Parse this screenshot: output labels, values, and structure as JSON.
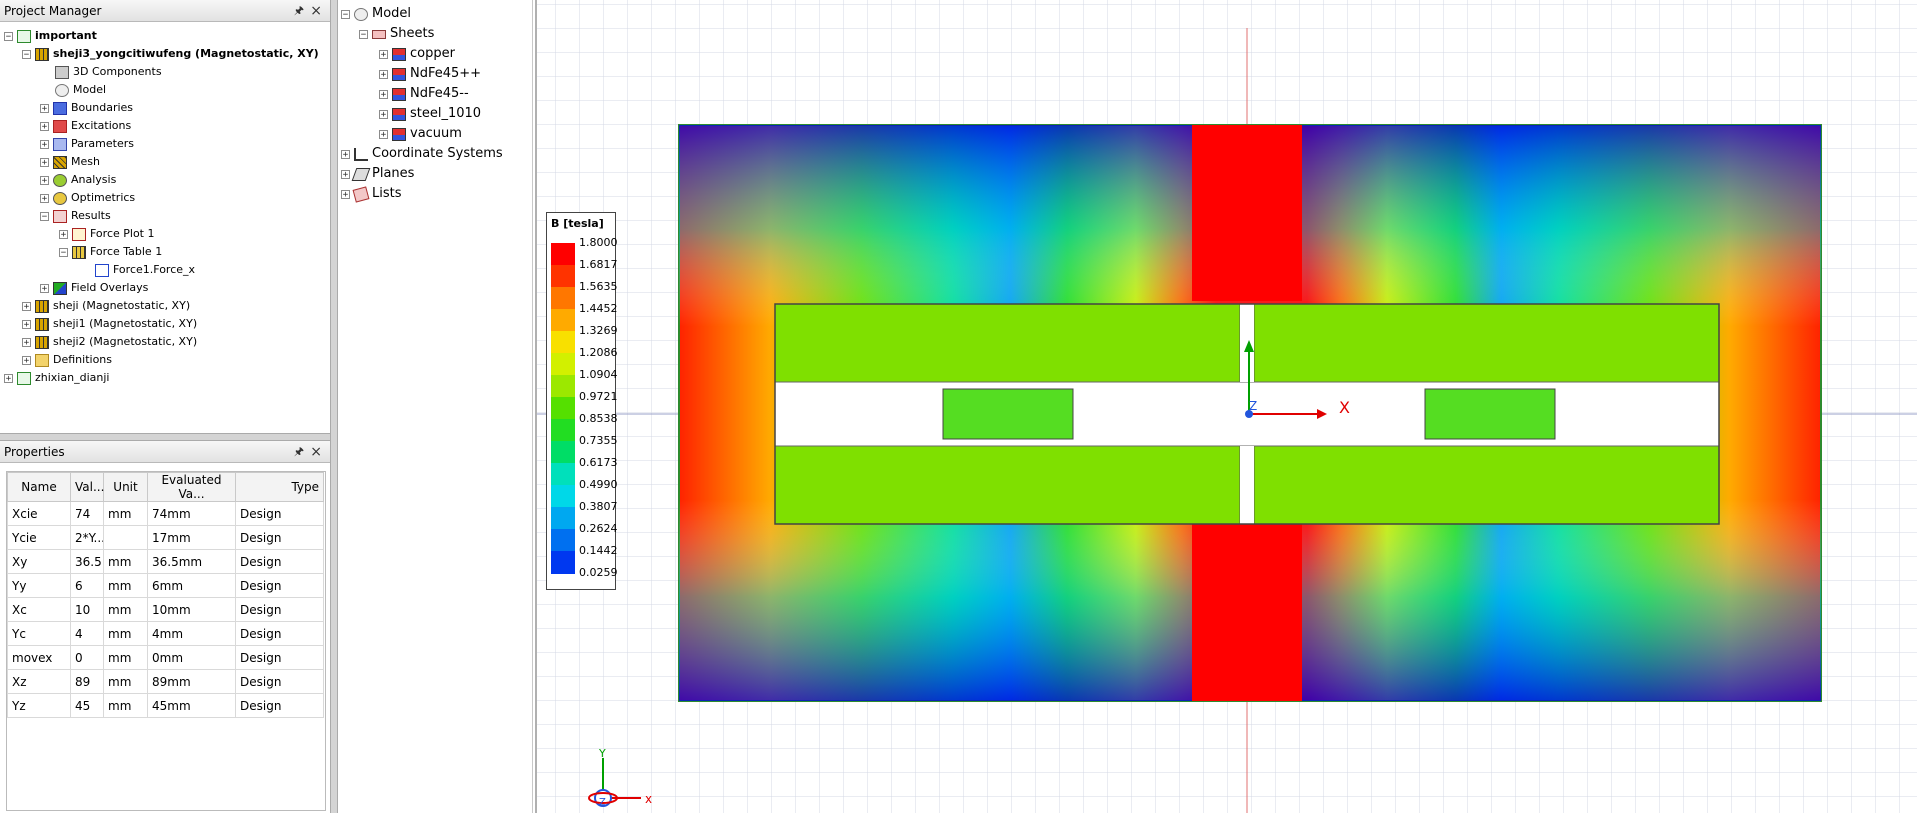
{
  "project_manager": {
    "title": "Project Manager",
    "items": [
      {
        "label": "important",
        "bold": true
      },
      {
        "label": "sheji3_yongcitiwufeng (Magnetostatic, XY)",
        "bold": true
      },
      {
        "label": "3D Components"
      },
      {
        "label": "Model"
      },
      {
        "label": "Boundaries"
      },
      {
        "label": "Excitations"
      },
      {
        "label": "Parameters"
      },
      {
        "label": "Mesh"
      },
      {
        "label": "Analysis"
      },
      {
        "label": "Optimetrics"
      },
      {
        "label": "Results"
      },
      {
        "label": "Force Plot 1"
      },
      {
        "label": "Force Table 1"
      },
      {
        "label": "Force1.Force_x"
      },
      {
        "label": "Field Overlays"
      },
      {
        "label": "sheji (Magnetostatic, XY)"
      },
      {
        "label": "sheji1 (Magnetostatic, XY)"
      },
      {
        "label": "sheji2 (Magnetostatic, XY)"
      },
      {
        "label": "Definitions"
      },
      {
        "label": "zhixian_dianji"
      }
    ]
  },
  "properties": {
    "title": "Properties",
    "columns": [
      "Name",
      "Val...",
      "Unit",
      "Evaluated Va...",
      "Type"
    ],
    "rows": [
      [
        "Xcie",
        "74",
        "mm",
        "74mm",
        "Design"
      ],
      [
        "Ycie",
        "2*Y...",
        "",
        "17mm",
        "Design"
      ],
      [
        "Xy",
        "36.5",
        "mm",
        "36.5mm",
        "Design"
      ],
      [
        "Yy",
        "6",
        "mm",
        "6mm",
        "Design"
      ],
      [
        "Xc",
        "10",
        "mm",
        "10mm",
        "Design"
      ],
      [
        "Yc",
        "4",
        "mm",
        "4mm",
        "Design"
      ],
      [
        "movex",
        "0",
        "mm",
        "0mm",
        "Design"
      ],
      [
        "Xz",
        "89",
        "mm",
        "89mm",
        "Design"
      ],
      [
        "Yz",
        "45",
        "mm",
        "45mm",
        "Design"
      ]
    ]
  },
  "model_tree": {
    "items": [
      {
        "label": "Model"
      },
      {
        "label": "Sheets"
      },
      {
        "label": "copper"
      },
      {
        "label": "NdFe45++"
      },
      {
        "label": "NdFe45--"
      },
      {
        "label": "steel_1010"
      },
      {
        "label": "vacuum"
      },
      {
        "label": "Coordinate Systems"
      },
      {
        "label": "Planes"
      },
      {
        "label": "Lists"
      }
    ]
  },
  "legend": {
    "title": "B [tesla]",
    "values": [
      "1.8000",
      "1.6817",
      "1.5635",
      "1.4452",
      "1.3269",
      "1.2086",
      "1.0904",
      "0.9721",
      "0.8538",
      "0.7355",
      "0.6173",
      "0.4990",
      "0.3807",
      "0.2624",
      "0.1442",
      "0.0259"
    ],
    "colors": [
      "#ff0000",
      "#ff3300",
      "#ff7700",
      "#ffaa00",
      "#f8e000",
      "#d2f000",
      "#9ce800",
      "#55e000",
      "#22dd22",
      "#00dd66",
      "#00e0bb",
      "#00d8e8",
      "#00a8f0",
      "#0070f0",
      "#0038f0",
      "#0000e0"
    ]
  },
  "viewport": {
    "axis_x": "X",
    "axis_z": "Z",
    "triad_x": "x",
    "triad_y": "Y",
    "triad_z": "Z"
  }
}
